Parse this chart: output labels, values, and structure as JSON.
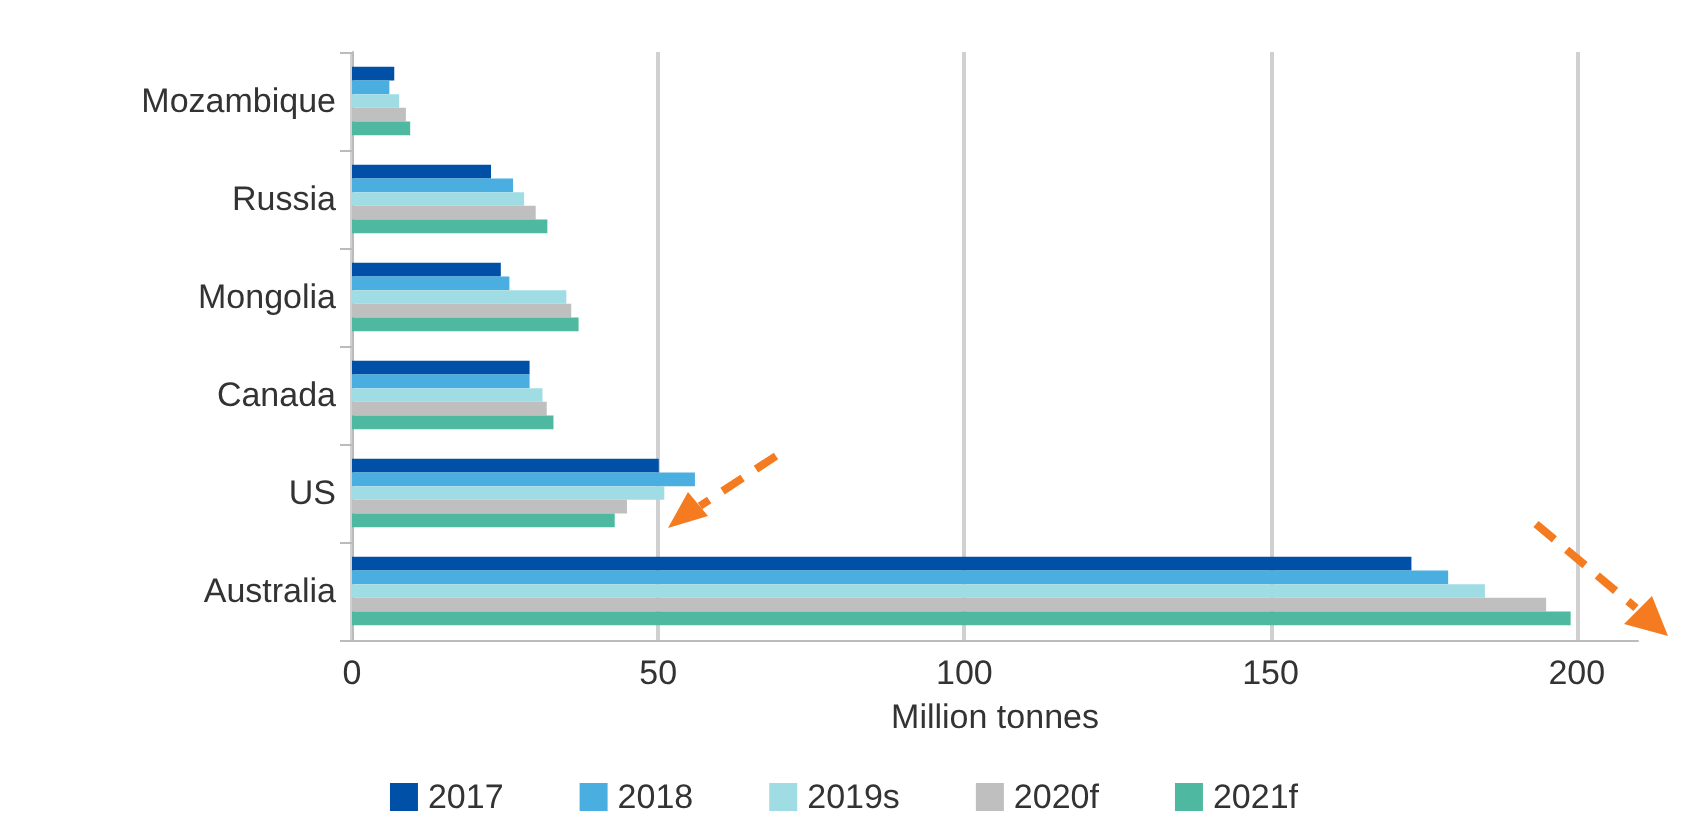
{
  "chart_data": {
    "type": "bar",
    "orientation": "horizontal",
    "xlabel": "Million tonnes",
    "categories": [
      "Mozambique",
      "Russia",
      "Mongolia",
      "Canada",
      "US",
      "Australia"
    ],
    "series": [
      {
        "name": "2017",
        "color": "#0050a8",
        "values": [
          6.9,
          22.7,
          24.3,
          29.0,
          50.1,
          173
        ]
      },
      {
        "name": "2018",
        "color": "#4aaee0",
        "values": [
          6.1,
          26.3,
          25.7,
          29.0,
          56,
          179
        ]
      },
      {
        "name": "2019s",
        "color": "#a0dce4",
        "values": [
          7.7,
          28.1,
          35.0,
          31.1,
          51,
          185
        ]
      },
      {
        "name": "2020f",
        "color": "#bfbfbf",
        "values": [
          8.8,
          30.0,
          35.8,
          31.8,
          44.9,
          195
        ]
      },
      {
        "name": "2021f",
        "color": "#4fb8a0",
        "values": [
          9.5,
          31.9,
          37.0,
          32.9,
          42.9,
          199
        ]
      }
    ],
    "xlim": [
      0,
      210
    ],
    "xticks": [
      0,
      50,
      100,
      150,
      200
    ],
    "grid": "x",
    "legend": "bottom"
  }
}
